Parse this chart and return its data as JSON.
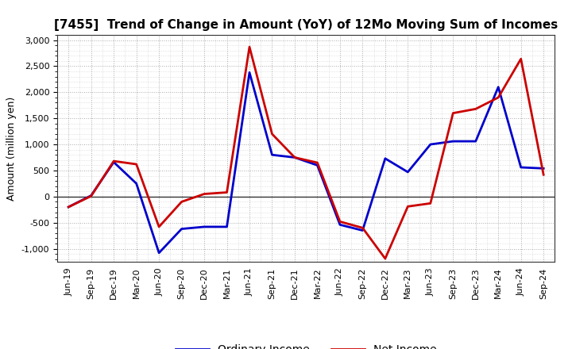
{
  "title": "[7455]  Trend of Change in Amount (YoY) of 12Mo Moving Sum of Incomes",
  "ylabel": "Amount (million yen)",
  "x_labels": [
    "Jun-19",
    "Sep-19",
    "Dec-19",
    "Mar-20",
    "Jun-20",
    "Sep-20",
    "Dec-20",
    "Mar-21",
    "Jun-21",
    "Sep-21",
    "Dec-21",
    "Mar-22",
    "Jun-22",
    "Sep-22",
    "Dec-22",
    "Mar-23",
    "Jun-23",
    "Sep-23",
    "Dec-23",
    "Mar-24",
    "Jun-24",
    "Sep-24"
  ],
  "ordinary_income": [
    -200,
    20,
    660,
    250,
    -1080,
    -620,
    -580,
    -580,
    2380,
    800,
    750,
    600,
    -540,
    -650,
    730,
    470,
    1000,
    1060,
    1060,
    2100,
    560,
    540
  ],
  "net_income": [
    -200,
    10,
    680,
    620,
    -580,
    -100,
    50,
    80,
    2870,
    1200,
    750,
    650,
    -480,
    -600,
    -1190,
    -190,
    -130,
    1600,
    1680,
    1900,
    2640,
    420
  ],
  "ordinary_color": "#0000cc",
  "net_color": "#cc0000",
  "ylim": [
    -1250,
    3100
  ],
  "yticks": [
    -1000,
    -500,
    0,
    500,
    1000,
    1500,
    2000,
    2500,
    3000
  ],
  "background_color": "#ffffff",
  "plot_bg_color": "#f0f0f0",
  "grid_color": "#888888",
  "zero_line_color": "#333333",
  "line_width": 2.0,
  "title_fontsize": 11,
  "axis_fontsize": 9,
  "tick_fontsize": 8
}
